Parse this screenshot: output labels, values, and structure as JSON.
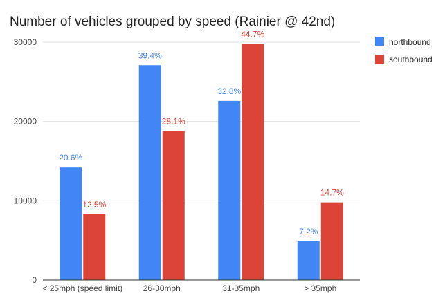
{
  "chart_data": {
    "type": "bar",
    "title": "Number of vehicles grouped by speed (Rainier @ 42nd)",
    "xlabel": "",
    "ylabel": "",
    "categories": [
      "< 25mph (speed limit)",
      "26-30mph",
      "31-35mph",
      "> 35mph"
    ],
    "series": [
      {
        "name": "northbound",
        "color": "#4285f4",
        "values": [
          14200,
          27100,
          22600,
          4900
        ],
        "labels": [
          "20.6%",
          "39.4%",
          "32.8%",
          "7.2%"
        ]
      },
      {
        "name": "southbound",
        "color": "#db4437",
        "values": [
          8300,
          18800,
          29800,
          9800
        ],
        "labels": [
          "12.5%",
          "28.1%",
          "44.7%",
          "14.7%"
        ]
      }
    ],
    "ylim": [
      0,
      30000
    ],
    "yticks": [
      "0",
      "10000",
      "20000",
      "30000"
    ],
    "grid": true,
    "legend": "right"
  }
}
